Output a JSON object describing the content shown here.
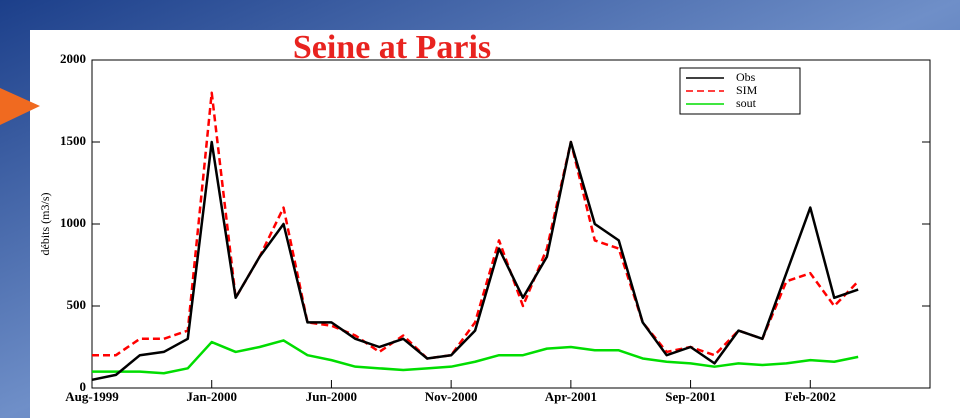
{
  "chart_data": {
    "type": "line",
    "title": "Seine at Paris",
    "y_label": "débits (m3/s)",
    "x": [
      "1999-08",
      "1999-09",
      "1999-10",
      "1999-11",
      "1999-12",
      "2000-01",
      "2000-02",
      "2000-03",
      "2000-04",
      "2000-05",
      "2000-06",
      "2000-07",
      "2000-08",
      "2000-09",
      "2000-10",
      "2000-11",
      "2000-12",
      "2001-01",
      "2001-02",
      "2001-03",
      "2001-04",
      "2001-05",
      "2001-06",
      "2001-07",
      "2001-08",
      "2001-09",
      "2001-10",
      "2001-11",
      "2001-12",
      "2002-01",
      "2002-02",
      "2002-03",
      "2002-04"
    ],
    "series": [
      {
        "name": "Obs",
        "color": "#000000",
        "values": [
          50,
          80,
          200,
          220,
          300,
          1500,
          550,
          800,
          1000,
          400,
          400,
          300,
          250,
          300,
          180,
          200,
          350,
          850,
          550,
          800,
          1500,
          1000,
          900,
          400,
          200,
          250,
          150,
          350,
          300,
          700,
          1100,
          550,
          600
        ]
      },
      {
        "name": "SIM",
        "color": "#ff0000",
        "dashed": true,
        "values": [
          200,
          200,
          300,
          300,
          350,
          1800,
          550,
          800,
          1100,
          400,
          380,
          320,
          220,
          320,
          180,
          200,
          400,
          900,
          500,
          850,
          1500,
          900,
          850,
          400,
          220,
          250,
          200,
          350,
          300,
          650,
          700,
          500,
          650
        ]
      },
      {
        "name": "sout",
        "color": "#00dd00",
        "values": [
          100,
          100,
          100,
          90,
          120,
          280,
          220,
          250,
          290,
          200,
          170,
          130,
          120,
          110,
          120,
          130,
          160,
          200,
          200,
          240,
          250,
          230,
          230,
          180,
          160,
          150,
          130,
          150,
          140,
          150,
          170,
          160,
          190
        ]
      }
    ],
    "xlim": [
      "1999-08",
      "2002-07"
    ],
    "xticks": [
      {
        "value": "1999-08",
        "label": "Aug-1999"
      },
      {
        "value": "2000-01",
        "label": "Jan-2000"
      },
      {
        "value": "2000-06",
        "label": "Jun-2000"
      },
      {
        "value": "2000-11",
        "label": "Nov-2000"
      },
      {
        "value": "2001-04",
        "label": "Apr-2001"
      },
      {
        "value": "2001-09",
        "label": "Sep-2001"
      },
      {
        "value": "2002-02",
        "label": "Feb-2002"
      }
    ],
    "ylim": [
      0,
      2000
    ],
    "yticks": [
      0,
      500,
      1000,
      1500,
      2000
    ],
    "legend": "upper right"
  }
}
